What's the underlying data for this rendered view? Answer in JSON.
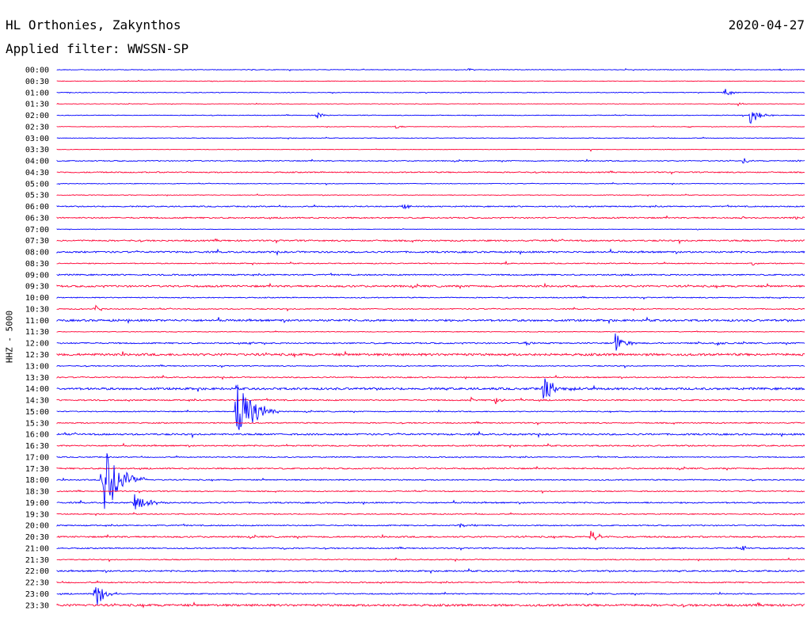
{
  "header": {
    "station": "HL Orthonies, Zakynthos",
    "date": "2020-04-27",
    "filter_text": "Applied filter: WWSSN-SP"
  },
  "channel_label": "HHZ - 5000",
  "colors": {
    "even_trace": "#0000ff",
    "odd_trace": "#ff0033"
  },
  "chart_data": {
    "type": "helicorder",
    "title": "HL Orthonies, Zakynthos",
    "ylabel": "HHZ - 5000",
    "row_minutes": 30,
    "time_labels": [
      "00:00",
      "00:30",
      "01:00",
      "01:30",
      "02:00",
      "02:30",
      "03:00",
      "03:30",
      "04:00",
      "04:30",
      "05:00",
      "05:30",
      "06:00",
      "06:30",
      "07:00",
      "07:30",
      "08:00",
      "08:30",
      "09:00",
      "09:30",
      "10:00",
      "10:30",
      "11:00",
      "11:30",
      "12:00",
      "12:30",
      "13:00",
      "13:30",
      "14:00",
      "14:30",
      "15:00",
      "15:30",
      "16:00",
      "16:30",
      "17:00",
      "17:30",
      "18:00",
      "18:30",
      "19:00",
      "19:30",
      "20:00",
      "20:30",
      "21:00",
      "21:30",
      "22:00",
      "22:30",
      "23:00",
      "23:30"
    ],
    "noise_level": [
      0.4,
      0.3,
      0.4,
      0.3,
      0.4,
      0.3,
      0.4,
      0.3,
      0.6,
      0.7,
      0.4,
      0.4,
      0.7,
      0.8,
      0.3,
      0.9,
      1.0,
      0.6,
      0.8,
      1.1,
      0.6,
      0.6,
      1.2,
      0.4,
      0.8,
      1.4,
      0.6,
      0.7,
      1.3,
      0.8,
      0.6,
      0.7,
      1.0,
      0.8,
      0.6,
      0.8,
      0.7,
      0.6,
      0.8,
      0.6,
      0.7,
      0.9,
      0.7,
      0.6,
      0.9,
      0.7,
      0.7,
      1.3
    ],
    "events": [
      {
        "row": 0,
        "minute": 16.5,
        "amp": 2,
        "dur": 0.6
      },
      {
        "row": 0,
        "minute": 29.0,
        "amp": 2,
        "dur": 0.5
      },
      {
        "row": 1,
        "minute": 6.5,
        "amp": 2,
        "dur": 0.2
      },
      {
        "row": 2,
        "minute": 26.8,
        "amp": 6,
        "dur": 0.8
      },
      {
        "row": 3,
        "minute": 27.3,
        "amp": 3,
        "dur": 0.6
      },
      {
        "row": 4,
        "minute": 10.4,
        "amp": 6,
        "dur": 0.6
      },
      {
        "row": 4,
        "minute": 27.8,
        "amp": 13,
        "dur": 1.0
      },
      {
        "row": 5,
        "minute": 13.6,
        "amp": 3,
        "dur": 0.5
      },
      {
        "row": 5,
        "minute": 25.3,
        "amp": 2,
        "dur": 0.5
      },
      {
        "row": 7,
        "minute": 21.4,
        "amp": 3,
        "dur": 0.2
      },
      {
        "row": 8,
        "minute": 27.5,
        "amp": 4,
        "dur": 0.8
      },
      {
        "row": 8,
        "minute": 29.7,
        "amp": 3,
        "dur": 0.5
      },
      {
        "row": 12,
        "minute": 13.9,
        "amp": 5,
        "dur": 0.6
      },
      {
        "row": 13,
        "minute": 27.5,
        "amp": 3,
        "dur": 0.5
      },
      {
        "row": 13,
        "minute": 29.6,
        "amp": 3,
        "dur": 0.5
      },
      {
        "row": 14,
        "minute": 25.7,
        "amp": 2,
        "dur": 0.2
      },
      {
        "row": 17,
        "minute": 18.0,
        "amp": 4,
        "dur": 0.2
      },
      {
        "row": 17,
        "minute": 27.9,
        "amp": 3,
        "dur": 0.5
      },
      {
        "row": 21,
        "minute": 1.5,
        "amp": 5,
        "dur": 0.8
      },
      {
        "row": 24,
        "minute": 22.4,
        "amp": 13,
        "dur": 1.0
      },
      {
        "row": 24,
        "minute": 18.8,
        "amp": 4,
        "dur": 0.6
      },
      {
        "row": 24,
        "minute": 26.4,
        "amp": 4,
        "dur": 0.8
      },
      {
        "row": 24,
        "minute": 7.8,
        "amp": 3,
        "dur": 0.5
      },
      {
        "row": 28,
        "minute": 19.5,
        "amp": 15,
        "dur": 1.5
      },
      {
        "row": 29,
        "minute": 17.6,
        "amp": 7,
        "dur": 0.6
      },
      {
        "row": 29,
        "minute": 16.6,
        "amp": 4,
        "dur": 0.4
      },
      {
        "row": 29,
        "minute": 18.6,
        "amp": 3,
        "dur": 0.3
      },
      {
        "row": 30,
        "minute": 7.2,
        "amp": 48,
        "dur": 1.8
      },
      {
        "row": 33,
        "minute": 9.2,
        "amp": 3,
        "dur": 0.3
      },
      {
        "row": 36,
        "minute": 1.8,
        "amp": 58,
        "dur": 1.8
      },
      {
        "row": 38,
        "minute": 3.1,
        "amp": 11,
        "dur": 1.5
      },
      {
        "row": 40,
        "minute": 16.1,
        "amp": 3,
        "dur": 1.2
      },
      {
        "row": 41,
        "minute": 21.4,
        "amp": 8,
        "dur": 1.2
      },
      {
        "row": 42,
        "minute": 27.5,
        "amp": 4,
        "dur": 0.5
      },
      {
        "row": 42,
        "minute": 9.0,
        "amp": 3,
        "dur": 0.4
      },
      {
        "row": 46,
        "minute": 1.5,
        "amp": 22,
        "dur": 1.0
      }
    ]
  }
}
